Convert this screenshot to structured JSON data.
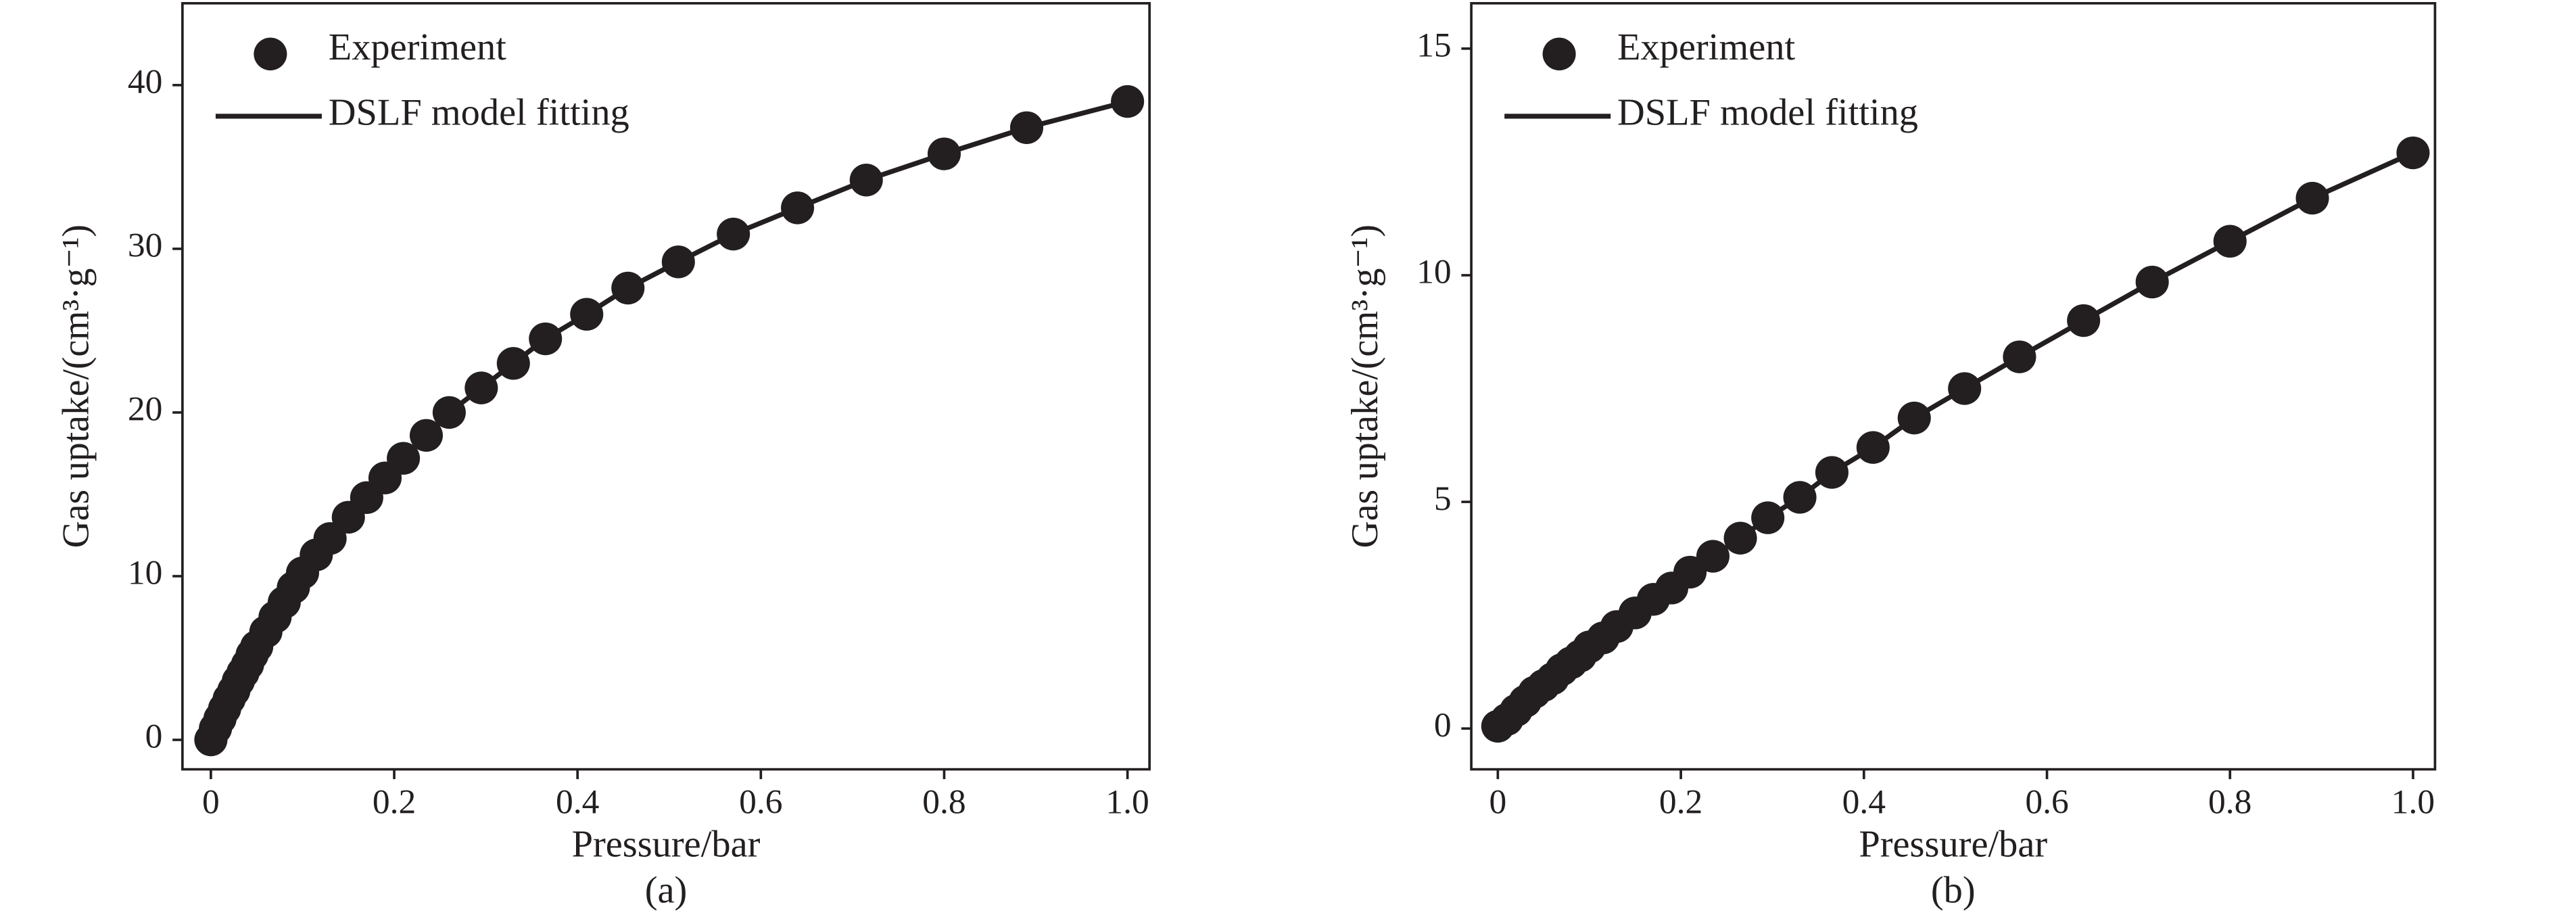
{
  "chart_data": [
    {
      "type": "scatter",
      "caption": "(a)",
      "xlabel": "Pressure/bar",
      "ylabel": "Gas uptake/(cm³·g⁻¹)",
      "legend": "upper left",
      "color": "#231f20",
      "x": [
        0,
        0.005,
        0.01,
        0.015,
        0.02,
        0.025,
        0.03,
        0.035,
        0.04,
        0.045,
        0.05,
        0.06,
        0.07,
        0.08,
        0.09,
        0.1,
        0.115,
        0.13,
        0.15,
        0.17,
        0.19,
        0.21,
        0.235,
        0.26,
        0.295,
        0.33,
        0.365,
        0.41,
        0.455,
        0.51,
        0.57,
        0.64,
        0.715,
        0.8,
        0.89,
        1.0
      ],
      "series": [
        {
          "name": "Experiment",
          "color": "#231f20",
          "values": [
            0,
            0.7,
            1.3,
            1.9,
            2.5,
            3,
            3.6,
            4.1,
            4.6,
            5.2,
            5.7,
            6.6,
            7.5,
            8.4,
            9.3,
            10.2,
            11.3,
            12.3,
            13.6,
            14.8,
            16,
            17.2,
            18.6,
            20,
            21.5,
            23,
            24.5,
            26,
            27.6,
            29.2,
            30.9,
            32.5,
            34.2,
            35.8,
            37.4,
            39
          ]
        },
        {
          "name": "DSLF model fitting",
          "color": "#231f20",
          "values": [
            0,
            0.7,
            1.3,
            1.9,
            2.5,
            3,
            3.6,
            4.1,
            4.6,
            5.2,
            5.7,
            6.6,
            7.5,
            8.4,
            9.3,
            10.2,
            11.3,
            12.3,
            13.6,
            14.8,
            16,
            17.2,
            18.6,
            20,
            21.5,
            23,
            24.5,
            26,
            27.6,
            29.2,
            30.9,
            32.5,
            34.2,
            35.8,
            37.4,
            39
          ]
        }
      ],
      "xlim": [
        -0.031,
        1.024
      ],
      "ylim": [
        -1.8,
        45
      ],
      "xticks": [
        0,
        0.2,
        0.4,
        0.6,
        0.8,
        {
          "value": 1,
          "label": "1.0"
        }
      ],
      "yticks": [
        0,
        10,
        20,
        30,
        40
      ]
    },
    {
      "type": "scatter",
      "caption": "(b)",
      "xlabel": "Pressure/bar",
      "ylabel": "Gas uptake/(cm³·g⁻¹)",
      "legend": "upper left",
      "color": "#231f20",
      "x": [
        0,
        0.01,
        0.02,
        0.03,
        0.04,
        0.05,
        0.06,
        0.07,
        0.08,
        0.09,
        0.1,
        0.115,
        0.13,
        0.15,
        0.17,
        0.19,
        0.21,
        0.235,
        0.265,
        0.295,
        0.33,
        0.365,
        0.41,
        0.455,
        0.51,
        0.57,
        0.64,
        0.715,
        0.8,
        0.89,
        1.0
      ],
      "series": [
        {
          "name": "Experiment",
          "color": "#231f20",
          "values": [
            0.05,
            0.2,
            0.4,
            0.6,
            0.8,
            0.95,
            1.1,
            1.3,
            1.45,
            1.6,
            1.8,
            2,
            2.25,
            2.55,
            2.85,
            3.1,
            3.45,
            3.8,
            4.2,
            4.65,
            5.1,
            5.65,
            6.2,
            6.85,
            7.5,
            8.2,
            9,
            9.85,
            10.75,
            11.7,
            12.7
          ]
        },
        {
          "name": "DSLF model fitting",
          "color": "#231f20",
          "values": [
            0.05,
            0.2,
            0.4,
            0.6,
            0.8,
            0.95,
            1.1,
            1.3,
            1.45,
            1.6,
            1.8,
            2,
            2.25,
            2.55,
            2.85,
            3.1,
            3.45,
            3.8,
            4.2,
            4.65,
            5.1,
            5.65,
            6.2,
            6.85,
            7.5,
            8.2,
            9,
            9.85,
            10.75,
            11.7,
            12.7
          ]
        }
      ],
      "xlim": [
        -0.029,
        1.024
      ],
      "ylim": [
        -0.9,
        16
      ],
      "xticks": [
        0,
        0.2,
        0.4,
        0.6,
        0.8,
        {
          "value": 1,
          "label": "1.0"
        }
      ],
      "yticks": [
        0,
        5,
        10,
        15
      ]
    }
  ]
}
